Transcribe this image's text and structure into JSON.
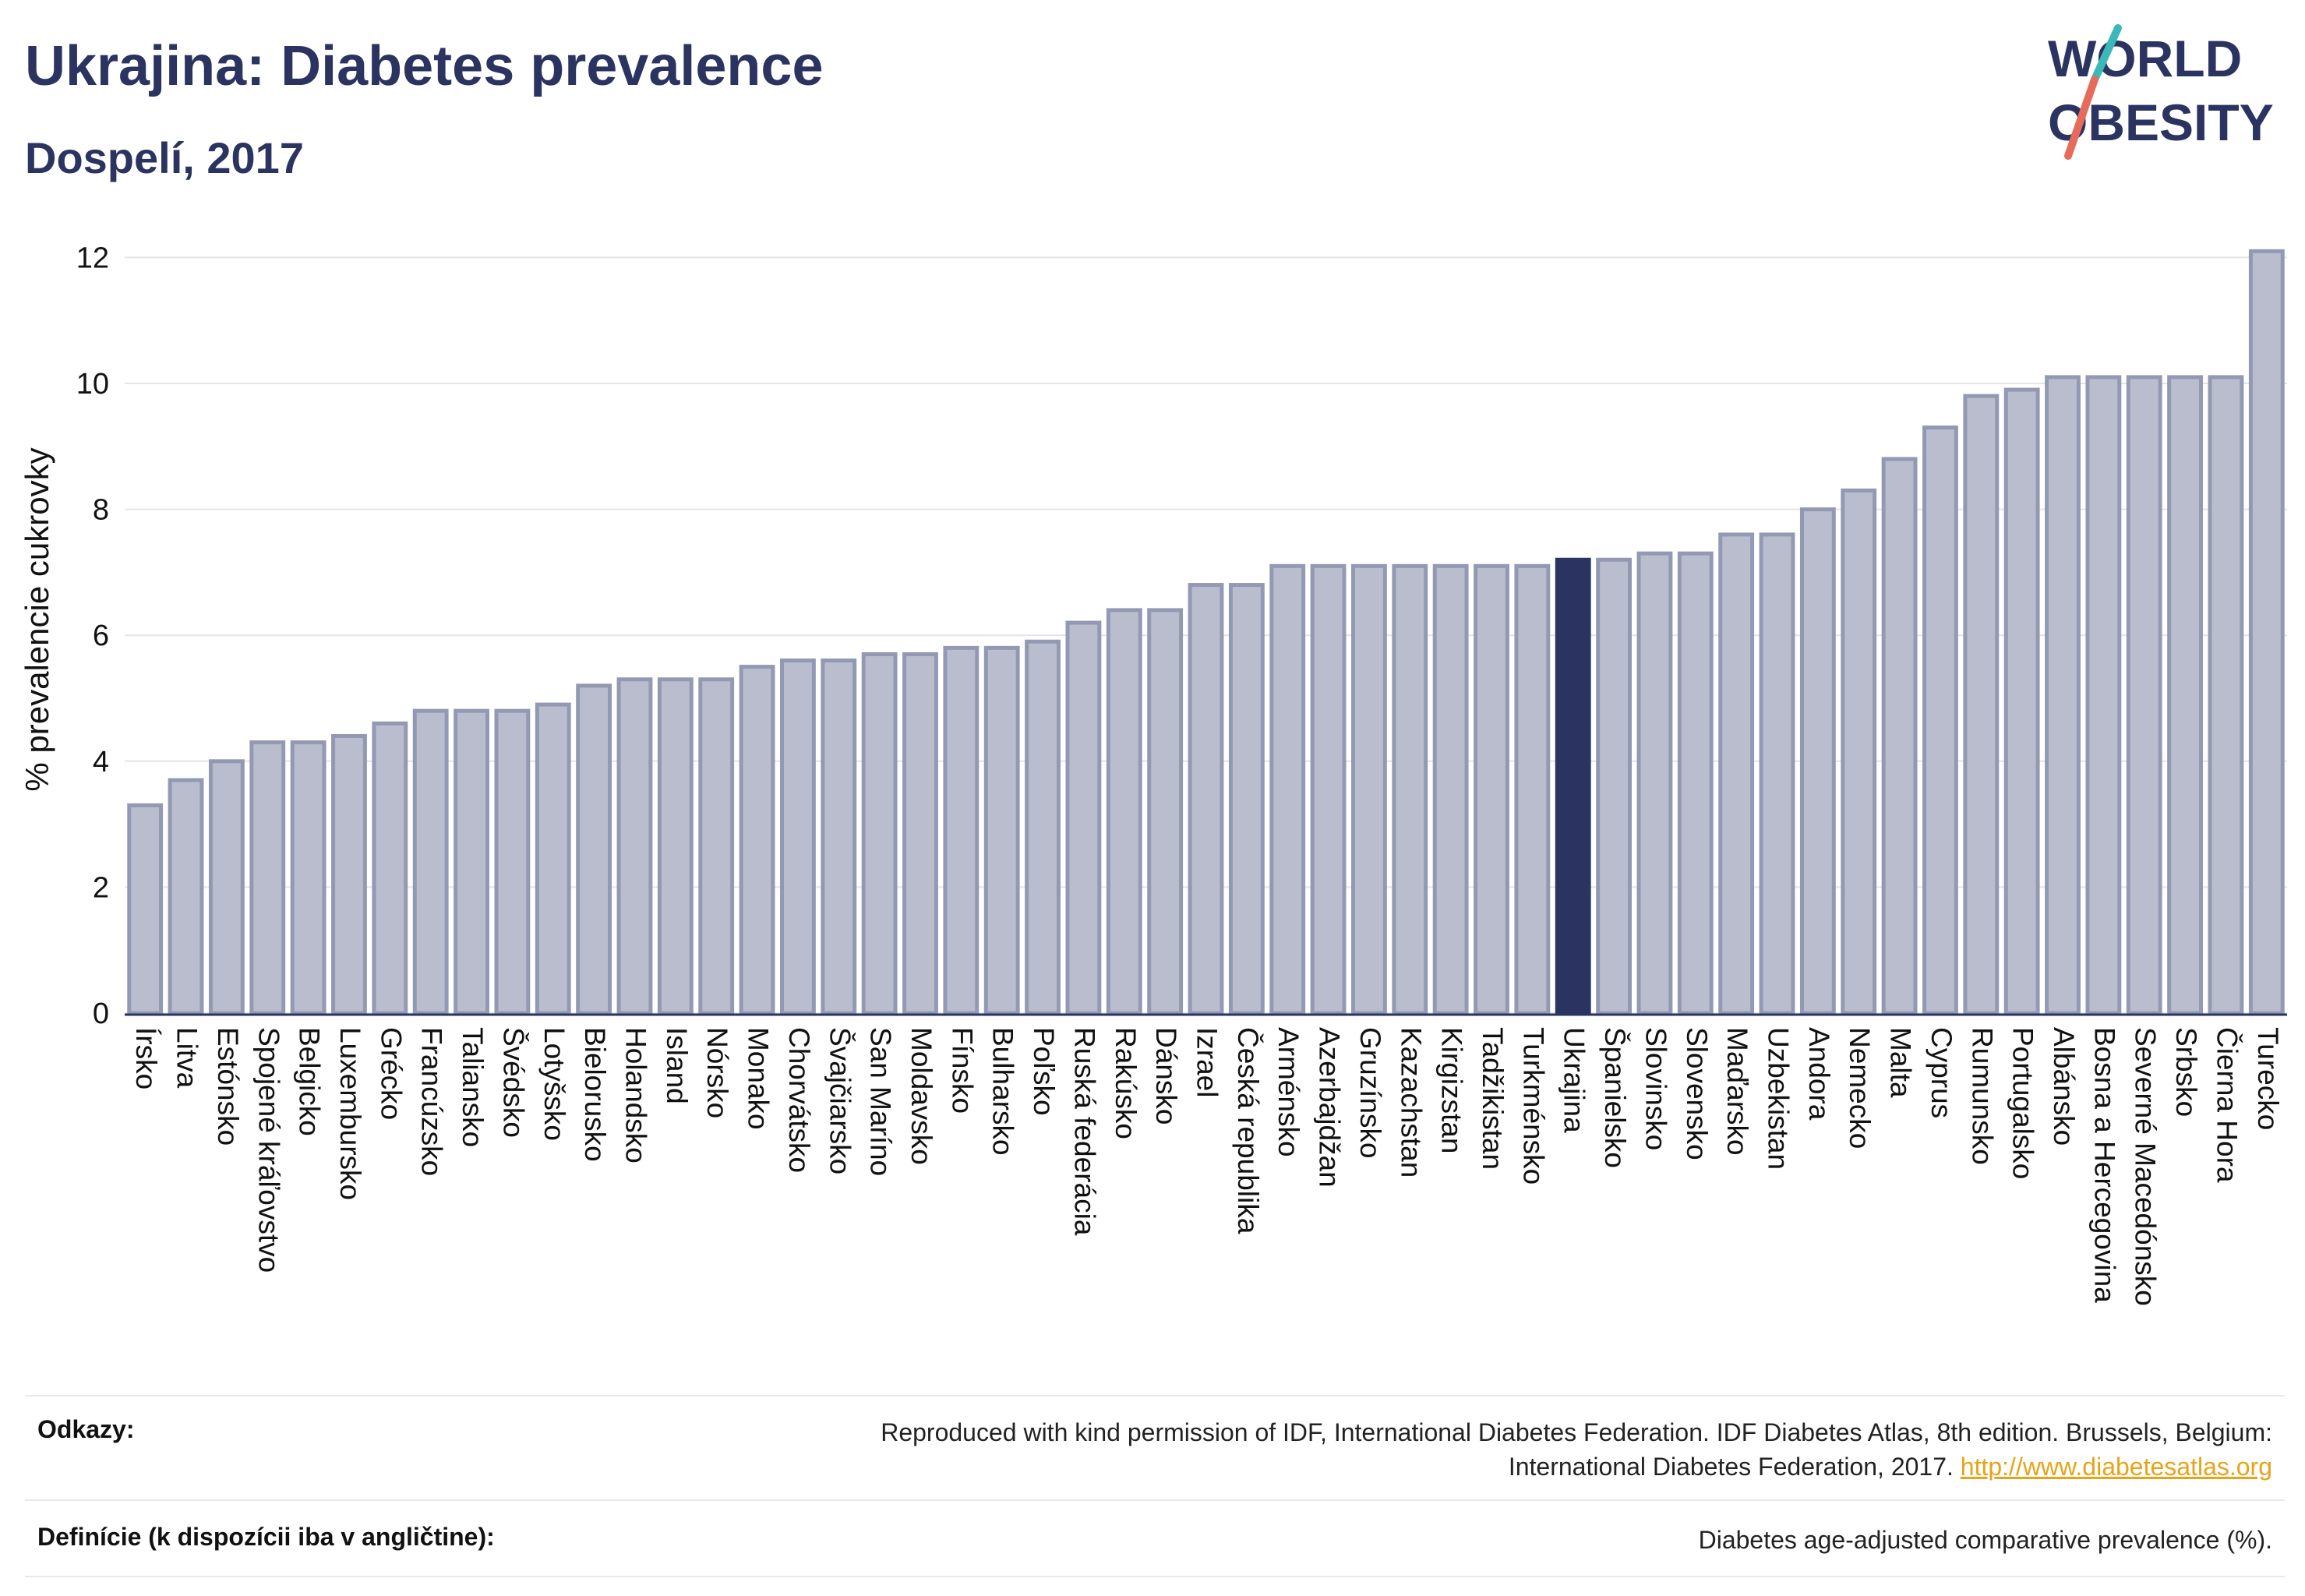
{
  "header": {
    "title": "Ukrajina: Diabetes prevalence",
    "subtitle": "Dospelí, 2017"
  },
  "logo": {
    "line1": "WORLD",
    "line2": "OBESITY",
    "icon": "world-obesity-logo"
  },
  "colors": {
    "bar": "#b9bdcd",
    "bar_stroke": "#9399b3",
    "highlight": "#2b3360",
    "title": "#2b3360",
    "link": "#e8a317",
    "slash_teal": "#3cb8b8",
    "slash_coral": "#e66b5b"
  },
  "chart_data": {
    "type": "bar",
    "categories": [
      "Írsko",
      "Litva",
      "Estónsko",
      "Spojené kráľovstvo",
      "Belgicko",
      "Luxembursko",
      "Grécko",
      "Francúzsko",
      "Taliansko",
      "Švédsko",
      "Lotyšsko",
      "Bielorusko",
      "Holandsko",
      "Island",
      "Nórsko",
      "Monako",
      "Chorvátsko",
      "Švajčiarsko",
      "San Maríno",
      "Moldavsko",
      "Fínsko",
      "Bulharsko",
      "Poľsko",
      "Ruská federácia",
      "Rakúsko",
      "Dánsko",
      "Izrael",
      "Česká republika",
      "Arménsko",
      "Azerbajdžan",
      "Gruzínsko",
      "Kazachstan",
      "Kirgizstan",
      "Tadžikistan",
      "Turkménsko",
      "Ukrajina",
      "Španielsko",
      "Slovinsko",
      "Slovensko",
      "Maďarsko",
      "Uzbekistan",
      "Andora",
      "Nemecko",
      "Malta",
      "Cyprus",
      "Rumunsko",
      "Portugalsko",
      "Albánsko",
      "Bosna a Hercegovina",
      "Severné Macedónsko",
      "Srbsko",
      "Čierna Hora",
      "Turecko"
    ],
    "values": [
      3.3,
      3.7,
      4.0,
      4.3,
      4.3,
      4.4,
      4.6,
      4.8,
      4.8,
      4.8,
      4.9,
      5.2,
      5.3,
      5.3,
      5.3,
      5.5,
      5.6,
      5.6,
      5.7,
      5.7,
      5.8,
      5.8,
      5.9,
      6.2,
      6.4,
      6.4,
      6.8,
      6.8,
      7.1,
      7.1,
      7.1,
      7.1,
      7.1,
      7.1,
      7.1,
      7.2,
      7.2,
      7.3,
      7.3,
      7.6,
      7.6,
      8.0,
      8.3,
      8.8,
      9.3,
      9.8,
      9.9,
      10.1,
      10.1,
      10.1,
      10.1,
      10.1,
      12.1
    ],
    "highlight": "Ukrajina",
    "title": "Ukrajina: Diabetes prevalence",
    "subtitle": "Dospelí, 2017",
    "xlabel": "",
    "ylabel": "% prevalencie cukrovky",
    "ylim": [
      0,
      12.5
    ],
    "yticks": [
      "0",
      "2",
      "4",
      "6",
      "8",
      "10",
      "12"
    ],
    "grid": true,
    "legend": "none"
  },
  "footer": {
    "sources_label": "Odkazy:",
    "sources_text_1": "Reproduced with kind permission of IDF, International Diabetes Federation. IDF Diabetes Atlas, 8th edition. Brussels, Belgium:",
    "sources_text_2": "International Diabetes Federation, 2017.",
    "sources_link": "http://www.diabetesatlas.org",
    "definition_label": "Definície (k dispozícii iba v angličtine):",
    "definition_text": "Diabetes age-adjusted comparative prevalence (%)."
  }
}
